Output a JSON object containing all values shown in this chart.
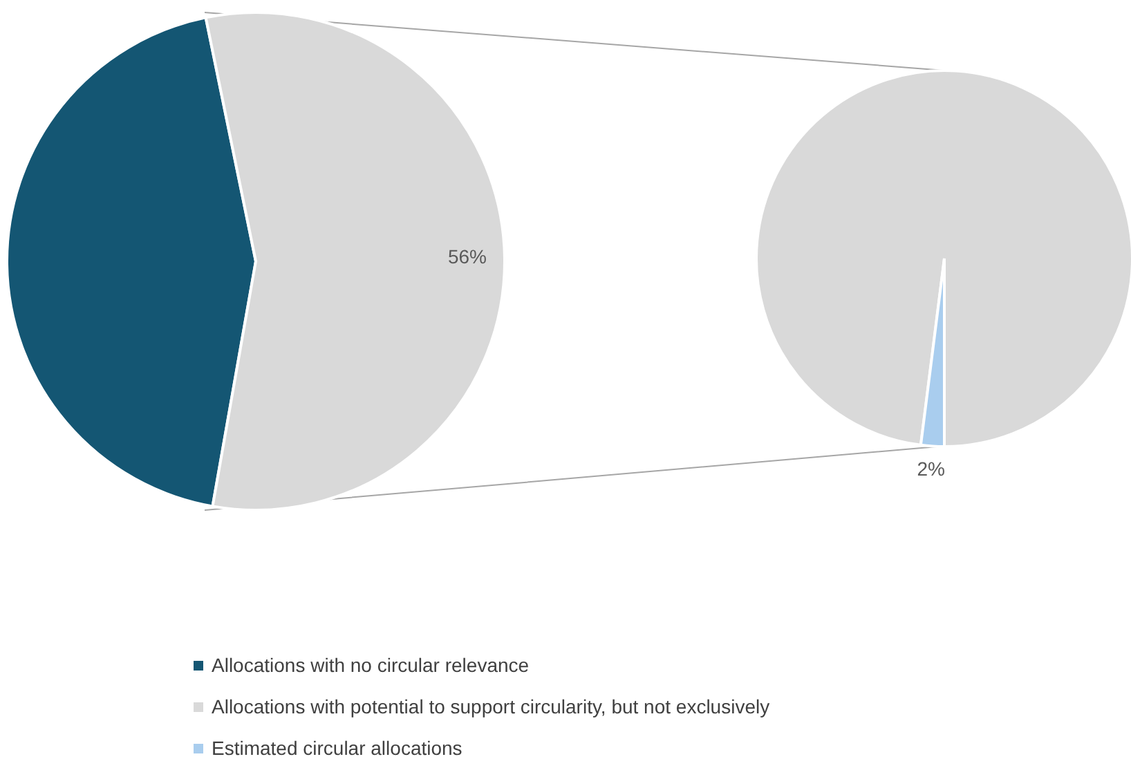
{
  "chart_data": [
    {
      "type": "pie",
      "categories": [
        "Allocations with no circular relevance",
        "Allocations with potential to support circularity, but not exclusively"
      ],
      "values": [
        44,
        56
      ],
      "colors": [
        "#145673",
        "#d9d9d9"
      ],
      "value_labels": [
        null,
        "56%"
      ],
      "legend": "bottom"
    },
    {
      "type": "pie",
      "categories": [
        null,
        "Estimated circular allocations"
      ],
      "values": [
        98,
        2
      ],
      "colors": [
        "#d9d9d9",
        "#a9cdee"
      ],
      "value_labels": [
        null,
        "2%"
      ],
      "legend": "bottom"
    }
  ]
}
